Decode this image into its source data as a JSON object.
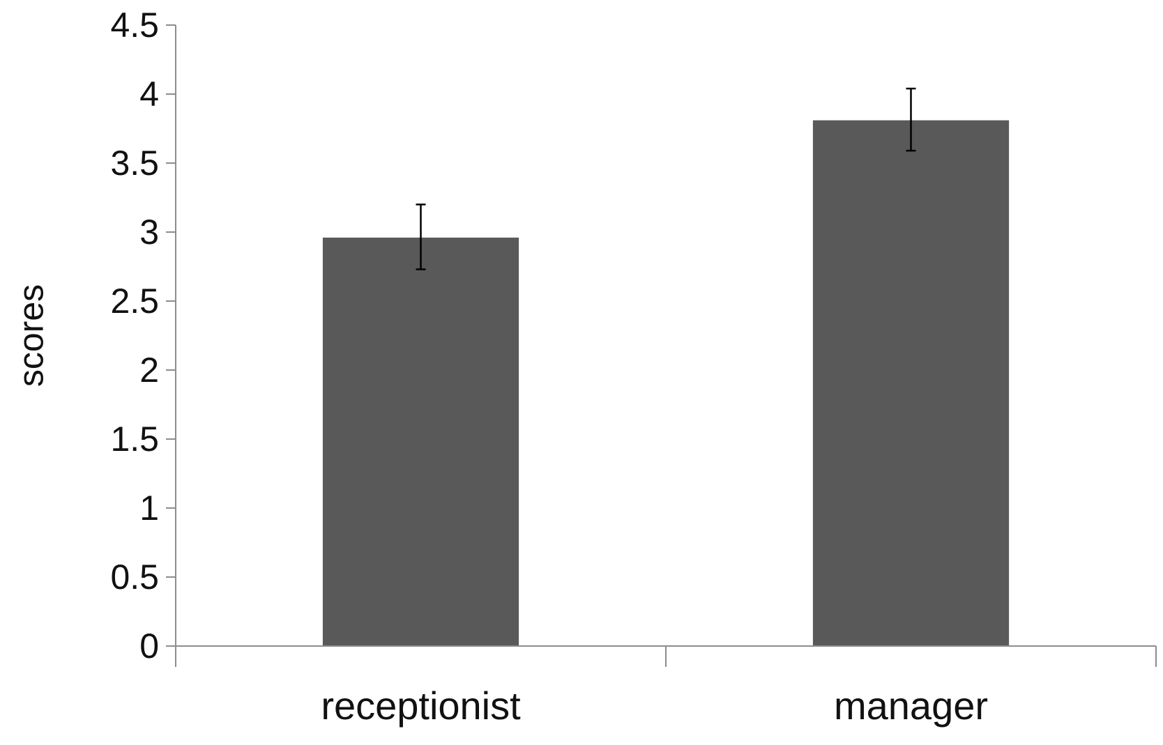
{
  "chart_data": {
    "type": "bar",
    "title": "",
    "xlabel": "",
    "ylabel": "scores",
    "categories": [
      "receptionist",
      "manager"
    ],
    "values": [
      2.96,
      3.81
    ],
    "error_bars": [
      {
        "low": 2.73,
        "high": 3.2
      },
      {
        "low": 3.59,
        "high": 4.04
      }
    ],
    "ylim": [
      0,
      4.5
    ],
    "yticks": [
      "0",
      "0.5",
      "1",
      "1.5",
      "2",
      "2.5",
      "3",
      "3.5",
      "4",
      "4.5"
    ],
    "grid": false,
    "legend": "none",
    "bar_color": "#595959",
    "error_bar_color": "#000000",
    "axis_color": "#8c8c8c"
  }
}
